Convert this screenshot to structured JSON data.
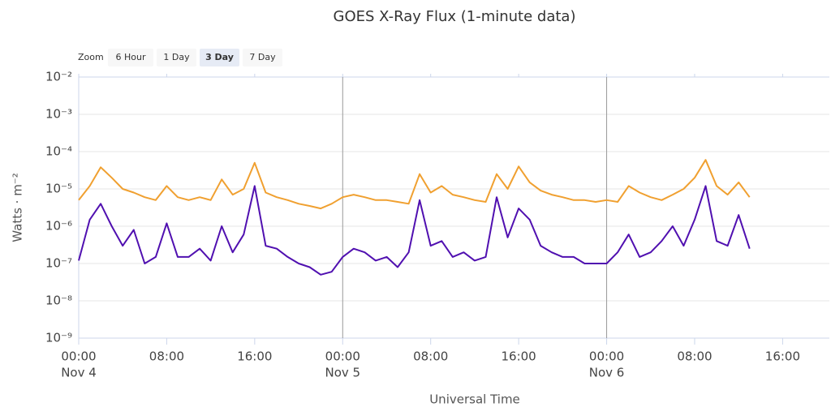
{
  "chart_data": {
    "type": "line",
    "title": "GOES X-Ray Flux (1-minute data)",
    "zoom": {
      "label": "Zoom",
      "buttons": [
        "6 Hour",
        "1 Day",
        "3 Day",
        "7 Day"
      ],
      "selected": 2
    },
    "xlabel": "Universal Time",
    "ylabel": "Watts · m⁻²",
    "yscale": "log",
    "grid": true,
    "ylim": [
      1e-09,
      0.01
    ],
    "yticks": [
      {
        "value": 0.01,
        "label": "10⁻²"
      },
      {
        "value": 0.001,
        "label": "10⁻³"
      },
      {
        "value": 0.0001,
        "label": "10⁻⁴"
      },
      {
        "value": 1e-05,
        "label": "10⁻⁵"
      },
      {
        "value": 1e-06,
        "label": "10⁻⁶"
      },
      {
        "value": 1e-07,
        "label": "10⁻⁷"
      },
      {
        "value": 1e-08,
        "label": "10⁻⁸"
      },
      {
        "value": 1e-09,
        "label": "10⁻⁹"
      }
    ],
    "xlim": [
      "Nov 4 00:00",
      "Nov 6 20:15"
    ],
    "xticks": [
      {
        "value": "Nov 4 00:00",
        "label": "00:00",
        "sublabel": "Nov 4"
      },
      {
        "value": "Nov 4 08:00",
        "label": "08:00"
      },
      {
        "value": "Nov 4 16:00",
        "label": "16:00"
      },
      {
        "value": "Nov 5 00:00",
        "label": "00:00",
        "sublabel": "Nov 5"
      },
      {
        "value": "Nov 5 08:00",
        "label": "08:00"
      },
      {
        "value": "Nov 5 16:00",
        "label": "16:00"
      },
      {
        "value": "Nov 6 00:00",
        "label": "00:00",
        "sublabel": "Nov 6"
      },
      {
        "value": "Nov 6 08:00",
        "label": "08:00"
      },
      {
        "value": "Nov 6 16:00",
        "label": "16:00"
      }
    ],
    "x": [
      "Nov 4 00:00",
      "Nov 4 01:00",
      "Nov 4 02:00",
      "Nov 4 03:00",
      "Nov 4 04:00",
      "Nov 4 05:00",
      "Nov 4 06:00",
      "Nov 4 07:00",
      "Nov 4 08:00",
      "Nov 4 09:00",
      "Nov 4 10:00",
      "Nov 4 11:00",
      "Nov 4 12:00",
      "Nov 4 13:00",
      "Nov 4 14:00",
      "Nov 4 15:00",
      "Nov 4 16:00",
      "Nov 4 17:00",
      "Nov 4 18:00",
      "Nov 4 19:00",
      "Nov 4 20:00",
      "Nov 4 21:00",
      "Nov 4 22:00",
      "Nov 4 23:00",
      "Nov 5 00:00",
      "Nov 5 01:00",
      "Nov 5 02:00",
      "Nov 5 03:00",
      "Nov 5 04:00",
      "Nov 5 05:00",
      "Nov 5 06:00",
      "Nov 5 07:00",
      "Nov 5 08:00",
      "Nov 5 09:00",
      "Nov 5 10:00",
      "Nov 5 11:00",
      "Nov 5 12:00",
      "Nov 5 13:00",
      "Nov 5 14:00",
      "Nov 5 15:00",
      "Nov 5 16:00",
      "Nov 5 17:00",
      "Nov 5 18:00",
      "Nov 5 19:00",
      "Nov 5 20:00",
      "Nov 5 21:00",
      "Nov 5 22:00",
      "Nov 5 23:00",
      "Nov 6 00:00",
      "Nov 6 01:00",
      "Nov 6 02:00",
      "Nov 6 03:00",
      "Nov 6 04:00",
      "Nov 6 05:00",
      "Nov 6 06:00",
      "Nov 6 07:00",
      "Nov 6 08:00",
      "Nov 6 09:00",
      "Nov 6 10:00",
      "Nov 6 11:00",
      "Nov 6 12:00",
      "Nov 6 13:00"
    ],
    "series": [
      {
        "color": "#f0a030",
        "values": [
          5e-06,
          1.2e-05,
          3.8e-05,
          2e-05,
          1e-05,
          8e-06,
          6e-06,
          5e-06,
          1.2e-05,
          6e-06,
          5e-06,
          6e-06,
          5e-06,
          1.8e-05,
          7e-06,
          1e-05,
          5e-05,
          8e-06,
          6e-06,
          5e-06,
          4e-06,
          3.5e-06,
          3e-06,
          4e-06,
          6e-06,
          7e-06,
          6e-06,
          5e-06,
          5e-06,
          4.5e-06,
          4e-06,
          2.5e-05,
          8e-06,
          1.2e-05,
          7e-06,
          6e-06,
          5e-06,
          4.5e-06,
          2.5e-05,
          1e-05,
          4e-05,
          1.5e-05,
          9e-06,
          7e-06,
          6e-06,
          5e-06,
          5e-06,
          4.5e-06,
          5e-06,
          4.5e-06,
          1.2e-05,
          8e-06,
          6e-06,
          5e-06,
          7e-06,
          1e-05,
          2e-05,
          6e-05,
          1.2e-05,
          7e-06,
          1.5e-05,
          6e-06
        ]
      },
      {
        "color": "#5010b0",
        "values": [
          1.2e-07,
          1.5e-06,
          4e-06,
          1e-06,
          3e-07,
          8e-07,
          1e-07,
          1.5e-07,
          1.2e-06,
          1.5e-07,
          1.5e-07,
          2.5e-07,
          1.2e-07,
          1e-06,
          2e-07,
          6e-07,
          1.2e-05,
          3e-07,
          2.5e-07,
          1.5e-07,
          1e-07,
          8e-08,
          5e-08,
          6e-08,
          1.5e-07,
          2.5e-07,
          2e-07,
          1.2e-07,
          1.5e-07,
          8e-08,
          2e-07,
          5e-06,
          3e-07,
          4e-07,
          1.5e-07,
          2e-07,
          1.2e-07,
          1.5e-07,
          6e-06,
          5e-07,
          3e-06,
          1.5e-06,
          3e-07,
          2e-07,
          1.5e-07,
          1.5e-07,
          1e-07,
          1e-07,
          1e-07,
          2e-07,
          6e-07,
          1.5e-07,
          2e-07,
          4e-07,
          1e-06,
          3e-07,
          1.5e-06,
          1.2e-05,
          4e-07,
          3e-07,
          2e-06,
          2.5e-07
        ]
      }
    ]
  }
}
